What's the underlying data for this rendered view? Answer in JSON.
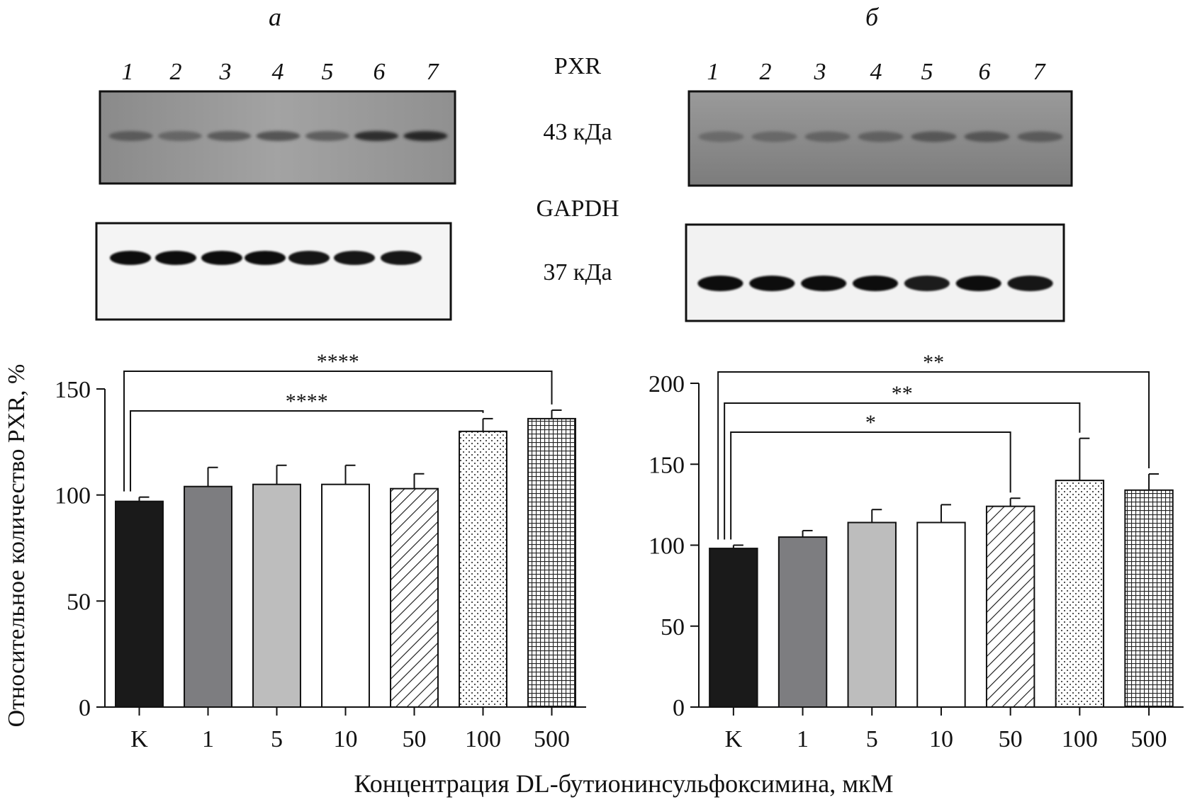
{
  "figure": {
    "panel_labels": [
      "а",
      "б"
    ],
    "lane_numbers": [
      "1",
      "2",
      "3",
      "4",
      "5",
      "6",
      "7"
    ],
    "protein_top": "PXR",
    "mass_top": "43 кДа",
    "protein_bottom": "GAPDH",
    "mass_bottom": "37 кДа",
    "y_axis_label": "Относительное количество PXR, %",
    "x_axis_label": "Концентрация DL-бутионинсульфоксимина, мкМ"
  },
  "legend_patterns": [
    "solid black",
    "solid dark gray",
    "solid light gray",
    "white",
    "diagonal hatch",
    "dots",
    "crosshatch"
  ],
  "colors": {
    "black": "#1a1a1a",
    "dark_gray": "#7d7d80",
    "light_gray": "#bdbdbd",
    "white": "#ffffff"
  },
  "chart_data": [
    {
      "panel": "а",
      "type": "bar",
      "categories": [
        "K",
        "1",
        "5",
        "10",
        "50",
        "100",
        "500"
      ],
      "values": [
        97,
        104,
        105,
        105,
        103,
        130,
        136
      ],
      "errors": [
        2,
        9,
        9,
        9,
        7,
        6,
        4
      ],
      "ylim": [
        0,
        150
      ],
      "yticks": [
        "0",
        "50",
        "100",
        "150"
      ],
      "significance": [
        {
          "from": "K",
          "to": "100",
          "label": "****"
        },
        {
          "from": "K",
          "to": "500",
          "label": "****"
        }
      ]
    },
    {
      "panel": "б",
      "type": "bar",
      "categories": [
        "K",
        "1",
        "5",
        "10",
        "50",
        "100",
        "500"
      ],
      "values": [
        98,
        105,
        114,
        114,
        124,
        140,
        134
      ],
      "errors": [
        2,
        4,
        8,
        11,
        5,
        26,
        10
      ],
      "ylim": [
        0,
        200
      ],
      "yticks": [
        "0",
        "50",
        "100",
        "150",
        "200"
      ],
      "significance": [
        {
          "from": "K",
          "to": "50",
          "label": "*"
        },
        {
          "from": "K",
          "to": "100",
          "label": "**"
        },
        {
          "from": "K",
          "to": "500",
          "label": "**"
        }
      ]
    }
  ]
}
